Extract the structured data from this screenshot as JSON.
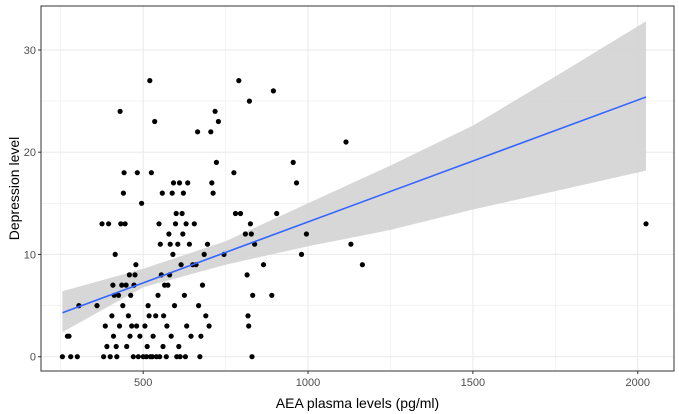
{
  "chart_data": {
    "type": "scatter",
    "title": "",
    "xlabel": "AEA plasma levels (pg/ml)",
    "ylabel": "Depression level",
    "xlim": [
      190,
      2110
    ],
    "ylim": [
      -1.4,
      34.3
    ],
    "x_ticks": [
      500,
      1000,
      1500,
      2000
    ],
    "y_ticks": [
      0,
      10,
      20,
      30
    ],
    "grid": true,
    "legend": "none",
    "points": [
      {
        "x": 255,
        "y": 0
      },
      {
        "x": 270,
        "y": 2
      },
      {
        "x": 275,
        "y": 2
      },
      {
        "x": 280,
        "y": 0
      },
      {
        "x": 300,
        "y": 0
      },
      {
        "x": 305,
        "y": 5
      },
      {
        "x": 360,
        "y": 5
      },
      {
        "x": 375,
        "y": 13
      },
      {
        "x": 380,
        "y": 0
      },
      {
        "x": 385,
        "y": 3
      },
      {
        "x": 390,
        "y": 1
      },
      {
        "x": 395,
        "y": 13
      },
      {
        "x": 400,
        "y": 0
      },
      {
        "x": 405,
        "y": 4
      },
      {
        "x": 408,
        "y": 7
      },
      {
        "x": 410,
        "y": 2
      },
      {
        "x": 412,
        "y": 6
      },
      {
        "x": 415,
        "y": 10
      },
      {
        "x": 418,
        "y": 1
      },
      {
        "x": 420,
        "y": 0
      },
      {
        "x": 425,
        "y": 6
      },
      {
        "x": 428,
        "y": 3
      },
      {
        "x": 430,
        "y": 24
      },
      {
        "x": 432,
        "y": 13
      },
      {
        "x": 435,
        "y": 7
      },
      {
        "x": 438,
        "y": 5
      },
      {
        "x": 440,
        "y": 16
      },
      {
        "x": 442,
        "y": 18
      },
      {
        "x": 445,
        "y": 13
      },
      {
        "x": 448,
        "y": 7
      },
      {
        "x": 450,
        "y": 1
      },
      {
        "x": 455,
        "y": 4
      },
      {
        "x": 458,
        "y": 8
      },
      {
        "x": 460,
        "y": 2
      },
      {
        "x": 462,
        "y": 6
      },
      {
        "x": 465,
        "y": 3
      },
      {
        "x": 470,
        "y": 0
      },
      {
        "x": 472,
        "y": 7
      },
      {
        "x": 475,
        "y": 8
      },
      {
        "x": 478,
        "y": 9
      },
      {
        "x": 480,
        "y": 3
      },
      {
        "x": 482,
        "y": 18
      },
      {
        "x": 485,
        "y": 0
      },
      {
        "x": 490,
        "y": 2
      },
      {
        "x": 495,
        "y": 15
      },
      {
        "x": 500,
        "y": 0
      },
      {
        "x": 505,
        "y": 3
      },
      {
        "x": 510,
        "y": 0
      },
      {
        "x": 512,
        "y": 1
      },
      {
        "x": 515,
        "y": 5
      },
      {
        "x": 518,
        "y": 4
      },
      {
        "x": 520,
        "y": 27
      },
      {
        "x": 522,
        "y": 0
      },
      {
        "x": 525,
        "y": 18
      },
      {
        "x": 528,
        "y": 0
      },
      {
        "x": 530,
        "y": 2
      },
      {
        "x": 535,
        "y": 23
      },
      {
        "x": 538,
        "y": 4
      },
      {
        "x": 540,
        "y": 0
      },
      {
        "x": 545,
        "y": 6
      },
      {
        "x": 548,
        "y": 13
      },
      {
        "x": 550,
        "y": 0
      },
      {
        "x": 552,
        "y": 11
      },
      {
        "x": 555,
        "y": 8
      },
      {
        "x": 558,
        "y": 16
      },
      {
        "x": 560,
        "y": 1
      },
      {
        "x": 562,
        "y": 4
      },
      {
        "x": 565,
        "y": 7
      },
      {
        "x": 570,
        "y": 0
      },
      {
        "x": 572,
        "y": 3
      },
      {
        "x": 575,
        "y": 7
      },
      {
        "x": 578,
        "y": 12
      },
      {
        "x": 580,
        "y": 8
      },
      {
        "x": 582,
        "y": 11
      },
      {
        "x": 585,
        "y": 2
      },
      {
        "x": 588,
        "y": 16
      },
      {
        "x": 590,
        "y": 10
      },
      {
        "x": 592,
        "y": 17
      },
      {
        "x": 595,
        "y": 5
      },
      {
        "x": 598,
        "y": 13
      },
      {
        "x": 600,
        "y": 14
      },
      {
        "x": 602,
        "y": 0
      },
      {
        "x": 605,
        "y": 11
      },
      {
        "x": 608,
        "y": 1
      },
      {
        "x": 610,
        "y": 17
      },
      {
        "x": 612,
        "y": 0
      },
      {
        "x": 615,
        "y": 9
      },
      {
        "x": 618,
        "y": 14
      },
      {
        "x": 620,
        "y": 12
      },
      {
        "x": 622,
        "y": 16
      },
      {
        "x": 625,
        "y": 6
      },
      {
        "x": 628,
        "y": 0
      },
      {
        "x": 630,
        "y": 13
      },
      {
        "x": 632,
        "y": 3
      },
      {
        "x": 635,
        "y": 17
      },
      {
        "x": 640,
        "y": 11
      },
      {
        "x": 645,
        "y": 2
      },
      {
        "x": 650,
        "y": 9
      },
      {
        "x": 655,
        "y": 13
      },
      {
        "x": 660,
        "y": 9
      },
      {
        "x": 665,
        "y": 22
      },
      {
        "x": 668,
        "y": 5
      },
      {
        "x": 672,
        "y": 0
      },
      {
        "x": 675,
        "y": 2
      },
      {
        "x": 680,
        "y": 7
      },
      {
        "x": 685,
        "y": 10
      },
      {
        "x": 690,
        "y": 4
      },
      {
        "x": 695,
        "y": 11
      },
      {
        "x": 700,
        "y": 3
      },
      {
        "x": 705,
        "y": 22
      },
      {
        "x": 708,
        "y": 17
      },
      {
        "x": 712,
        "y": 16
      },
      {
        "x": 718,
        "y": 24
      },
      {
        "x": 722,
        "y": 19
      },
      {
        "x": 728,
        "y": 23
      },
      {
        "x": 745,
        "y": 10
      },
      {
        "x": 775,
        "y": 18
      },
      {
        "x": 780,
        "y": 14
      },
      {
        "x": 790,
        "y": 27
      },
      {
        "x": 795,
        "y": 14
      },
      {
        "x": 810,
        "y": 12
      },
      {
        "x": 815,
        "y": 8
      },
      {
        "x": 818,
        "y": 4
      },
      {
        "x": 820,
        "y": 3
      },
      {
        "x": 822,
        "y": 25
      },
      {
        "x": 825,
        "y": 13
      },
      {
        "x": 828,
        "y": 12
      },
      {
        "x": 830,
        "y": 0
      },
      {
        "x": 832,
        "y": 6
      },
      {
        "x": 838,
        "y": 11
      },
      {
        "x": 865,
        "y": 9
      },
      {
        "x": 890,
        "y": 6
      },
      {
        "x": 895,
        "y": 26
      },
      {
        "x": 905,
        "y": 14
      },
      {
        "x": 955,
        "y": 19
      },
      {
        "x": 965,
        "y": 17
      },
      {
        "x": 980,
        "y": 10
      },
      {
        "x": 995,
        "y": 12
      },
      {
        "x": 1115,
        "y": 21
      },
      {
        "x": 1130,
        "y": 11
      },
      {
        "x": 1165,
        "y": 9
      },
      {
        "x": 2025,
        "y": 13
      }
    ],
    "trend_line": {
      "x": [
        255,
        2025
      ],
      "y": [
        4.3,
        25.4
      ]
    },
    "confidence_band": {
      "x": [
        255,
        500,
        750,
        1000,
        1250,
        1500,
        1750,
        2025
      ],
      "lower": [
        2.4,
        6.8,
        9.0,
        10.8,
        12.4,
        14.4,
        16.2,
        18.2
      ],
      "upper": [
        6.4,
        8.6,
        11.3,
        15.0,
        18.7,
        22.6,
        27.4,
        32.8
      ]
    },
    "colors": {
      "points": "#000000",
      "trend_line": "#3366ff",
      "band": "#d3d3d3",
      "grid": "#ebebeb",
      "panel_border": "#333333"
    }
  }
}
